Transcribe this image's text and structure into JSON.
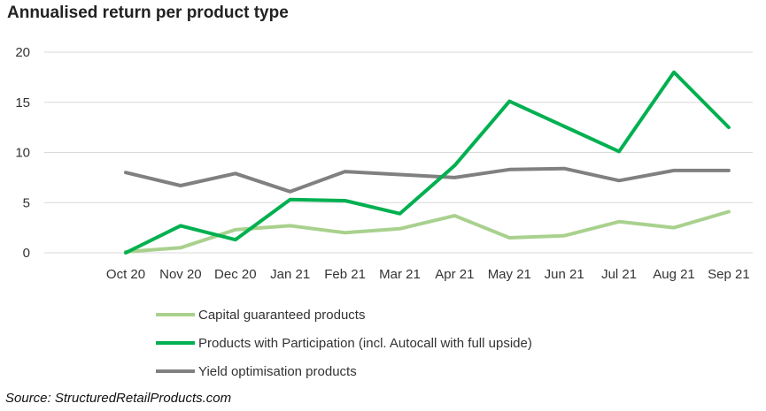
{
  "chart_data": {
    "type": "line",
    "title": "Annualised return per product type",
    "categories": [
      "Oct 20",
      "Nov 20",
      "Dec 20",
      "Jan 21",
      "Feb 21",
      "Mar 21",
      "Apr 21",
      "May 21",
      "Jun 21",
      "Jul 21",
      "Aug 21",
      "Sep 21"
    ],
    "ylim": [
      0,
      20
    ],
    "yticks": [
      0,
      5,
      10,
      15,
      20
    ],
    "grid": true,
    "legend_position": "bottom",
    "series": [
      {
        "name": "Capital guaranteed products",
        "color": "#a9d18e",
        "values": [
          0.1,
          0.5,
          2.3,
          2.7,
          2.0,
          2.4,
          3.7,
          1.5,
          1.7,
          3.1,
          2.5,
          4.1
        ]
      },
      {
        "name": "Products with Participation (incl. Autocall with full upside)",
        "color": "#00b050",
        "values": [
          0.0,
          2.7,
          1.3,
          5.3,
          5.2,
          3.9,
          8.7,
          15.1,
          12.6,
          10.1,
          18.0,
          12.5
        ]
      },
      {
        "name": "Yield optimisation products",
        "color": "#808080",
        "values": [
          8.0,
          6.7,
          7.9,
          6.1,
          8.1,
          7.8,
          7.5,
          8.3,
          8.4,
          7.2,
          8.2,
          8.2
        ]
      }
    ]
  },
  "source": "Source: StructuredRetailProducts.com"
}
